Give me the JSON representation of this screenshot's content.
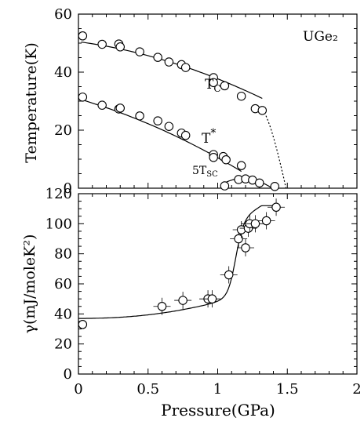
{
  "chart_data": [
    {
      "type": "scatter",
      "annotation": "UGe₂",
      "ylabel": "Temperature(K)",
      "xlim": [
        0,
        2
      ],
      "ylim": [
        0,
        60
      ],
      "y_ticks": [
        "0",
        "20",
        "40",
        "60"
      ],
      "series": [
        {
          "name": "T_C",
          "label_main": "T",
          "label_sub": "C",
          "x": [
            0.03,
            0.17,
            0.29,
            0.3,
            0.44,
            0.57,
            0.65,
            0.74,
            0.77,
            0.97,
            0.97,
            1.05,
            1.17,
            1.27,
            1.32
          ],
          "y": [
            52.5,
            49.6,
            49.7,
            48.7,
            47.0,
            45.1,
            43.5,
            42.6,
            41.6,
            38.1,
            36.4,
            35.3,
            31.7,
            27.4,
            26.8
          ]
        },
        {
          "name": "T*",
          "label_main": "T",
          "label_sup": "*",
          "x": [
            0.03,
            0.17,
            0.29,
            0.3,
            0.44,
            0.57,
            0.65,
            0.74,
            0.77,
            0.97,
            0.97,
            1.04,
            1.06,
            1.17
          ],
          "y": [
            31.4,
            28.6,
            27.3,
            27.6,
            24.9,
            23.2,
            21.3,
            19.0,
            18.2,
            11.6,
            10.6,
            10.9,
            9.8,
            7.8
          ]
        },
        {
          "name": "5T_SC",
          "label_main": "5T",
          "label_sub": "SC",
          "x": [
            1.05,
            1.15,
            1.2,
            1.25,
            1.3,
            1.41
          ],
          "y": [
            0.8,
            3.0,
            3.2,
            2.8,
            1.8,
            0.6
          ]
        }
      ]
    },
    {
      "type": "scatter",
      "xlabel": "Pressure(GPa)",
      "ylabel": "γ(mJ/moleK²)",
      "xlim": [
        0,
        2
      ],
      "ylim": [
        0,
        120
      ],
      "x_ticks": [
        "0",
        "0.5",
        "1",
        "1.5",
        "2"
      ],
      "y_ticks": [
        "0",
        "20",
        "40",
        "60",
        "80",
        "100",
        "120"
      ],
      "series": [
        {
          "name": "γ",
          "x": [
            0.03,
            0.6,
            0.75,
            0.93,
            0.96,
            1.08,
            1.15,
            1.17,
            1.2,
            1.22,
            1.23,
            1.27,
            1.35,
            1.42
          ],
          "y": [
            33,
            45,
            49,
            50,
            50,
            66,
            90,
            96,
            84,
            97,
            100,
            100,
            102,
            111
          ]
        }
      ]
    }
  ]
}
